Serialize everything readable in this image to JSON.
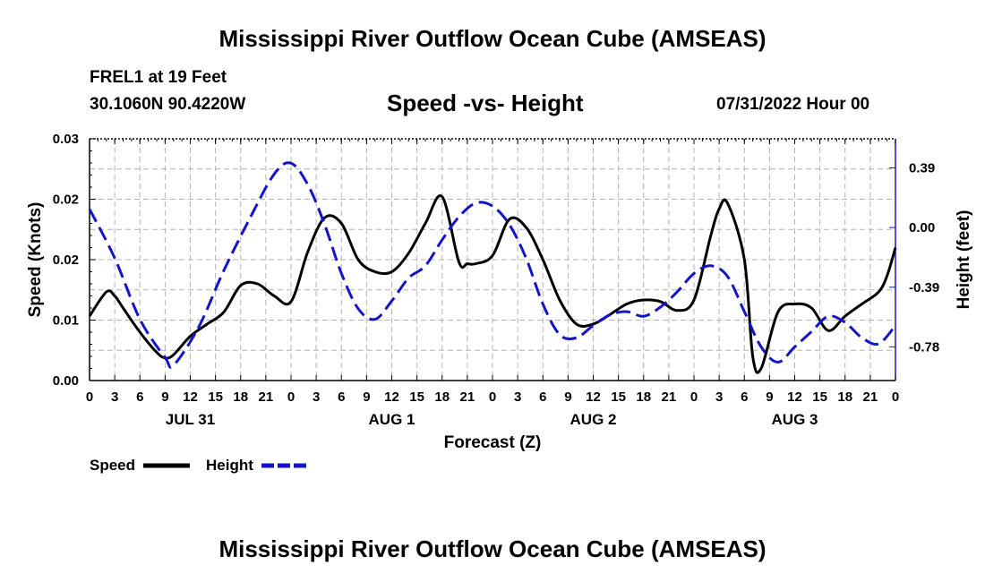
{
  "header": {
    "title": "Mississippi River Outflow Ocean Cube (AMSEAS)",
    "station": "FREL1 at 19 Feet",
    "coords": "30.1060N  90.4220W",
    "subtitle": "Speed -vs- Height",
    "datetime": "07/31/2022 Hour 00"
  },
  "footer": {
    "title": "Mississippi River Outflow Ocean Cube (AMSEAS)"
  },
  "legend": {
    "speed_label": "Speed",
    "height_label": "Height",
    "speed_color": "#000000",
    "height_color": "#1414c8"
  },
  "chart_data": {
    "type": "line",
    "xlabel": "Forecast (Z)",
    "ylabel_left": "Speed (Knots)",
    "ylabel_right": "Height (feet)",
    "x_range_hours": [
      0,
      96
    ],
    "x_tick_labels": [
      "0",
      "3",
      "6",
      "9",
      "12",
      "15",
      "18",
      "21",
      "0",
      "3",
      "6",
      "9",
      "12",
      "15",
      "18",
      "21",
      "0",
      "3",
      "6",
      "9",
      "12",
      "15",
      "18",
      "21",
      "0",
      "3",
      "6",
      "9",
      "12",
      "15",
      "18",
      "21",
      "0"
    ],
    "day_labels": [
      {
        "label": "JUL 31",
        "hour": 12
      },
      {
        "label": "AUG 1",
        "hour": 36
      },
      {
        "label": "AUG 2",
        "hour": 60
      },
      {
        "label": "AUG 3",
        "hour": 84
      }
    ],
    "ylim_left": [
      0,
      0.03
    ],
    "y_ticks_left": [
      {
        "value": 0.0,
        "label": "0.00"
      },
      {
        "value": 0.0075,
        "label": "0.01"
      },
      {
        "value": 0.015,
        "label": "0.02"
      },
      {
        "value": 0.0225,
        "label": "0.02"
      },
      {
        "value": 0.03,
        "label": "0.03"
      }
    ],
    "ylim_right": [
      -1.0,
      0.58
    ],
    "y_ticks_right": [
      {
        "value": 0.39,
        "label": "0.39"
      },
      {
        "value": 0.0,
        "label": "0.00"
      },
      {
        "value": -0.39,
        "label": "-0.39"
      },
      {
        "value": -0.78,
        "label": "-0.78"
      }
    ],
    "series": [
      {
        "name": "Speed",
        "axis": "left",
        "style": "solid",
        "x": [
          0,
          2,
          3,
          4,
          6,
          8,
          9,
          10,
          12,
          14,
          16,
          18,
          20,
          22,
          24,
          26,
          28,
          30,
          32,
          34,
          36,
          38,
          40,
          42,
          44,
          45,
          46,
          48,
          50,
          52,
          54,
          56,
          58,
          60,
          62,
          64,
          66,
          68,
          70,
          72,
          74,
          75,
          76,
          78,
          79,
          80,
          82,
          84,
          86,
          88,
          90,
          92,
          94,
          95,
          96
        ],
        "values": [
          0.008,
          0.011,
          0.0105,
          0.009,
          0.006,
          0.0035,
          0.0028,
          0.0032,
          0.0055,
          0.007,
          0.0085,
          0.0118,
          0.012,
          0.0105,
          0.0098,
          0.016,
          0.0202,
          0.0195,
          0.015,
          0.0135,
          0.0135,
          0.0158,
          0.0195,
          0.0228,
          0.0147,
          0.0145,
          0.0145,
          0.0155,
          0.02,
          0.019,
          0.015,
          0.01,
          0.007,
          0.007,
          0.0082,
          0.0095,
          0.01,
          0.0098,
          0.0087,
          0.01,
          0.018,
          0.0213,
          0.022,
          0.015,
          0.003,
          0.0015,
          0.0085,
          0.0095,
          0.009,
          0.0062,
          0.008,
          0.0095,
          0.011,
          0.013,
          0.0165
        ]
      },
      {
        "name": "Height",
        "axis": "right",
        "style": "dashed",
        "x": [
          0,
          3,
          6,
          9,
          10,
          13,
          16,
          19,
          22,
          24,
          26,
          28,
          30,
          32,
          34,
          36,
          38,
          40,
          42,
          44,
          46,
          48,
          50,
          52,
          54,
          56,
          58,
          60,
          62,
          64,
          66,
          68,
          70,
          72,
          74,
          76,
          78,
          80,
          82,
          84,
          86,
          88,
          90,
          92,
          94,
          96
        ],
        "values": [
          0.12,
          -0.2,
          -0.6,
          -0.85,
          -0.9,
          -0.65,
          -0.28,
          0.05,
          0.35,
          0.42,
          0.28,
          0.02,
          -0.3,
          -0.53,
          -0.6,
          -0.48,
          -0.33,
          -0.25,
          -0.08,
          0.07,
          0.16,
          0.14,
          0.02,
          -0.2,
          -0.5,
          -0.7,
          -0.72,
          -0.64,
          -0.57,
          -0.55,
          -0.58,
          -0.52,
          -0.42,
          -0.3,
          -0.25,
          -0.32,
          -0.55,
          -0.78,
          -0.88,
          -0.78,
          -0.68,
          -0.58,
          -0.62,
          -0.72,
          -0.76,
          -0.64
        ]
      }
    ]
  }
}
